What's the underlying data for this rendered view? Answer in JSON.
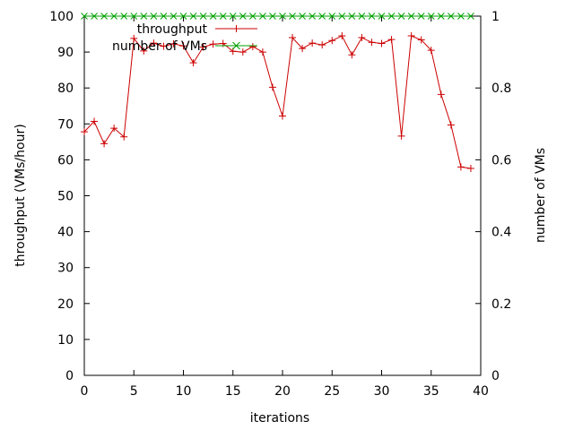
{
  "chart_data": {
    "type": "line",
    "xlabel": "iterations",
    "ylabel": "throughput (VMs/hour)",
    "y2label": "number of VMs",
    "xlim": [
      0,
      40
    ],
    "ylim": [
      0,
      100
    ],
    "y2lim": [
      0,
      1
    ],
    "xticks": [
      0,
      5,
      10,
      15,
      20,
      25,
      30,
      35,
      40
    ],
    "yticks": [
      0,
      10,
      20,
      30,
      40,
      50,
      60,
      70,
      80,
      90,
      100
    ],
    "y2ticks": [
      0,
      0.2,
      0.4,
      0.6,
      0.8,
      1
    ],
    "grid": false,
    "legend_position": "top-center",
    "x": [
      0,
      1,
      2,
      3,
      4,
      5,
      6,
      7,
      8,
      9,
      10,
      11,
      12,
      13,
      14,
      15,
      16,
      17,
      18,
      19,
      20,
      21,
      22,
      23,
      24,
      25,
      26,
      27,
      28,
      29,
      30,
      31,
      32,
      33,
      34,
      35,
      36,
      37,
      38,
      39
    ],
    "series": [
      {
        "name": "throughput",
        "axis": "left",
        "color": "#cc0000",
        "marker": "+",
        "values": [
          67.8,
          70.7,
          64.5,
          68.8,
          66.4,
          93.8,
          90.3,
          92.5,
          91.6,
          92.3,
          91.7,
          87.0,
          91.4,
          92.2,
          92.4,
          90.2,
          90.0,
          91.5,
          90.0,
          80.2,
          72.2,
          94.0,
          91.0,
          92.5,
          92.0,
          93.2,
          94.5,
          89.2,
          94.0,
          92.7,
          92.4,
          93.5,
          66.6,
          94.5,
          93.4,
          90.5,
          78.2,
          69.7,
          58.0,
          57.6
        ]
      },
      {
        "name": "number of VMs",
        "axis": "right",
        "color": "#00a000",
        "marker": "x",
        "values": [
          1,
          1,
          1,
          1,
          1,
          1,
          1,
          1,
          1,
          1,
          1,
          1,
          1,
          1,
          1,
          1,
          1,
          1,
          1,
          1,
          1,
          1,
          1,
          1,
          1,
          1,
          1,
          1,
          1,
          1,
          1,
          1,
          1,
          1,
          1,
          1,
          1,
          1,
          1,
          1
        ]
      }
    ]
  }
}
